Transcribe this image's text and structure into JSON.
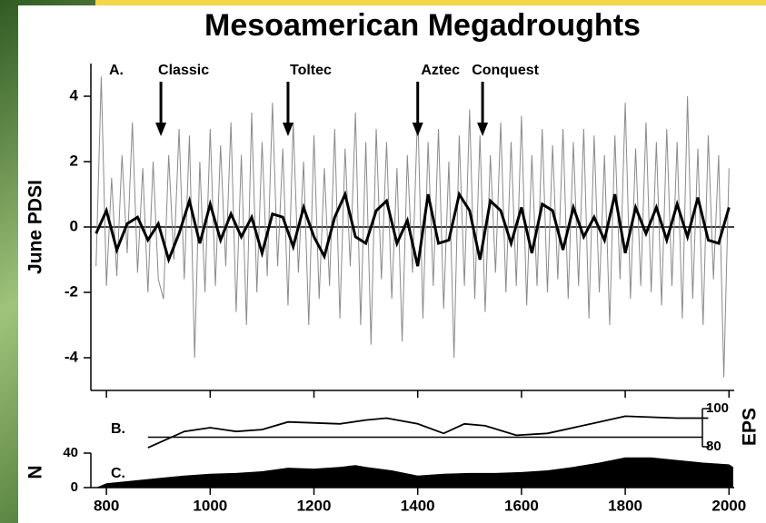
{
  "chart_data": [
    {
      "type": "line",
      "title": "Mesoamerican Megadroughts",
      "panel_label": "A.",
      "ylabel": "June PDSI",
      "xlim": [
        770,
        2010
      ],
      "ylim": [
        -5,
        5
      ],
      "yticks": [
        -4,
        -2,
        0,
        2,
        4
      ],
      "reference_line": 0,
      "annotations": [
        {
          "text": "Classic",
          "x": 905
        },
        {
          "text": "Toltec",
          "x": 1150
        },
        {
          "text": "Aztec",
          "x": 1400
        },
        {
          "text": "Conquest",
          "x": 1525
        }
      ],
      "series": [
        {
          "color": "#8a8a8a",
          "x": [
            780,
            790,
            800,
            810,
            820,
            830,
            840,
            850,
            860,
            870,
            880,
            890,
            900,
            910,
            920,
            930,
            940,
            950,
            960,
            970,
            980,
            990,
            1000,
            1010,
            1020,
            1030,
            1040,
            1050,
            1060,
            1070,
            1080,
            1090,
            1100,
            1110,
            1120,
            1130,
            1140,
            1150,
            1160,
            1170,
            1180,
            1190,
            1200,
            1210,
            1220,
            1230,
            1240,
            1250,
            1260,
            1270,
            1280,
            1290,
            1300,
            1310,
            1320,
            1330,
            1340,
            1350,
            1360,
            1370,
            1380,
            1390,
            1400,
            1410,
            1420,
            1430,
            1440,
            1450,
            1460,
            1470,
            1480,
            1490,
            1500,
            1510,
            1520,
            1530,
            1540,
            1550,
            1560,
            1570,
            1580,
            1590,
            1600,
            1610,
            1620,
            1630,
            1640,
            1650,
            1660,
            1670,
            1680,
            1690,
            1700,
            1710,
            1720,
            1730,
            1740,
            1750,
            1760,
            1770,
            1780,
            1790,
            1800,
            1810,
            1820,
            1830,
            1840,
            1850,
            1860,
            1870,
            1880,
            1890,
            1900,
            1910,
            1920,
            1930,
            1940,
            1950,
            1960,
            1970,
            1980,
            1990,
            2000
          ],
          "values": [
            -1.2,
            4.6,
            -1.8,
            1.5,
            -1.5,
            2.2,
            -0.8,
            3.2,
            -1.4,
            1.8,
            -2.0,
            2.0,
            -1.6,
            -2.2,
            2.2,
            -1.0,
            3.0,
            -1.6,
            2.8,
            -4.0,
            2.0,
            -2.0,
            3.0,
            -1.8,
            2.5,
            -1.2,
            3.2,
            -2.6,
            2.2,
            -3.0,
            3.5,
            -2.0,
            2.6,
            -1.5,
            3.8,
            -1.2,
            2.4,
            -2.4,
            3.2,
            -1.4,
            2.0,
            -3.0,
            2.8,
            -2.2,
            1.8,
            -1.8,
            3.0,
            -2.8,
            2.4,
            -1.2,
            3.5,
            -3.0,
            2.6,
            -3.6,
            3.0,
            -1.6,
            2.6,
            -2.2,
            1.8,
            -3.5,
            2.2,
            -1.4,
            3.6,
            -2.8,
            2.6,
            -1.8,
            3.0,
            -2.5,
            2.0,
            -4.0,
            2.8,
            -1.8,
            3.6,
            -2.2,
            2.8,
            -2.6,
            2.2,
            -1.4,
            3.2,
            -2.0,
            2.6,
            -1.8,
            3.4,
            -2.4,
            2.2,
            -1.8,
            3.0,
            -2.0,
            2.5,
            -1.6,
            3.0,
            -2.2,
            2.6,
            -1.8,
            3.0,
            -2.8,
            2.8,
            -2.0,
            2.2,
            -3.0,
            2.8,
            -1.6,
            3.8,
            -2.2,
            2.4,
            -1.8,
            3.2,
            -2.0,
            2.6,
            -2.4,
            3.0,
            -1.8,
            2.6,
            -2.8,
            4.0,
            -2.2,
            2.4,
            -3.0,
            2.8,
            -1.6,
            2.2,
            -4.6,
            1.8
          ]
        },
        {
          "color": "#000000",
          "x": [
            780,
            800,
            820,
            840,
            860,
            880,
            900,
            920,
            940,
            960,
            980,
            1000,
            1020,
            1040,
            1060,
            1080,
            1100,
            1120,
            1140,
            1160,
            1180,
            1200,
            1220,
            1240,
            1260,
            1280,
            1300,
            1320,
            1340,
            1360,
            1380,
            1400,
            1420,
            1440,
            1460,
            1480,
            1500,
            1520,
            1540,
            1560,
            1580,
            1600,
            1620,
            1640,
            1660,
            1680,
            1700,
            1720,
            1740,
            1760,
            1780,
            1800,
            1820,
            1840,
            1860,
            1880,
            1900,
            1920,
            1940,
            1960,
            1980,
            2000
          ],
          "values": [
            -0.2,
            0.5,
            -0.7,
            0.1,
            0.3,
            -0.4,
            0.1,
            -1.0,
            -0.2,
            0.8,
            -0.5,
            0.7,
            -0.4,
            0.4,
            -0.3,
            0.3,
            -0.8,
            0.4,
            0.3,
            -0.6,
            0.6,
            -0.3,
            -0.9,
            0.3,
            1.0,
            -0.3,
            -0.5,
            0.5,
            0.8,
            -0.5,
            0.2,
            -1.2,
            1.0,
            -0.5,
            -0.4,
            1.0,
            0.5,
            -1.0,
            0.8,
            0.5,
            -0.5,
            0.6,
            -0.8,
            0.7,
            0.5,
            -0.7,
            0.6,
            -0.3,
            0.3,
            -0.4,
            1.0,
            -0.8,
            0.6,
            -0.2,
            0.6,
            -0.4,
            0.7,
            -0.3,
            0.9,
            -0.4,
            -0.5,
            0.6
          ]
        }
      ]
    },
    {
      "type": "line",
      "panel_label": "B.",
      "y2label": "EPS",
      "xlim": [
        770,
        2010
      ],
      "y2lim": [
        80,
        100
      ],
      "y2ticks": [
        80,
        100
      ],
      "reference_line": 85,
      "series": [
        {
          "color": "#000000",
          "axis": "y2",
          "x": [
            880,
            950,
            1000,
            1050,
            1100,
            1150,
            1250,
            1300,
            1340,
            1400,
            1450,
            1490,
            1530,
            1590,
            1650,
            1750,
            1800,
            1900,
            1960
          ],
          "values": [
            79.5,
            88,
            90,
            88,
            89,
            93,
            92,
            94,
            95,
            92,
            87,
            92,
            91,
            86,
            87,
            93,
            96,
            95,
            95
          ]
        }
      ]
    },
    {
      "type": "area",
      "panel_label": "C.",
      "ylabel": "N",
      "xlim": [
        770,
        2010
      ],
      "ylim": [
        0,
        40
      ],
      "yticks": [
        0,
        40
      ],
      "xticks": [
        800,
        1000,
        1200,
        1400,
        1600,
        1800,
        2000
      ],
      "series": [
        {
          "color": "#000000",
          "x": [
            780,
            800,
            850,
            900,
            950,
            1000,
            1050,
            1100,
            1150,
            1200,
            1250,
            1280,
            1300,
            1350,
            1400,
            1450,
            1500,
            1550,
            1600,
            1650,
            1700,
            1750,
            1800,
            1850,
            1900,
            1950,
            2000,
            2008
          ],
          "values": [
            0,
            5,
            8,
            11,
            14,
            16,
            17,
            19,
            23,
            22,
            24,
            26,
            24,
            20,
            14,
            16,
            17,
            17,
            18,
            20,
            24,
            29,
            35,
            35,
            32,
            29,
            27,
            24
          ]
        }
      ]
    }
  ]
}
